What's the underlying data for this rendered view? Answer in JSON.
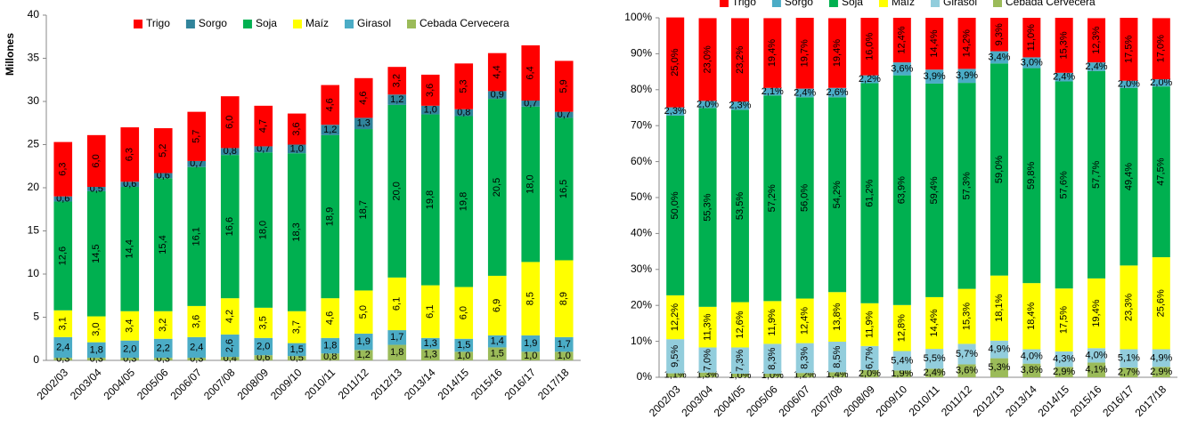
{
  "chart_data": [
    {
      "type": "stacked_bar",
      "ylabel": "Millones",
      "categories": [
        "2002/03",
        "2003/04",
        "2004/05",
        "2005/06",
        "2006/07",
        "2007/08",
        "2008/09",
        "2009/10",
        "2010/11",
        "2011/12",
        "2012/13",
        "2013/14",
        "2014/15",
        "2015/16",
        "2016/17",
        "2017/18"
      ],
      "ylim": [
        0,
        40
      ],
      "yticks": [
        0,
        5,
        10,
        15,
        20,
        25,
        30,
        35,
        40
      ],
      "legend": "top",
      "series": [
        {
          "name": "Trigo",
          "color": "#ff0000",
          "values": [
            6.3,
            6.0,
            6.3,
            5.2,
            5.7,
            6.0,
            4.7,
            3.6,
            4.6,
            4.6,
            3.2,
            3.6,
            5.3,
            4.4,
            6.4,
            5.9
          ],
          "value_labels": [
            "6,3",
            "6,0",
            "6,3",
            "5,2",
            "5,7",
            "6,0",
            "4,7",
            "3,6",
            "4,6",
            "4,6",
            "3,2",
            "3,6",
            "5,3",
            "4,4",
            "6,4",
            "5,9"
          ]
        },
        {
          "name": "Sorgo",
          "color": "#31849b",
          "values": [
            0.6,
            0.5,
            0.6,
            0.6,
            0.7,
            0.8,
            0.7,
            1.0,
            1.2,
            1.3,
            1.2,
            1.0,
            0.8,
            0.9,
            0.7,
            0.7
          ],
          "value_labels": [
            "0,6",
            "0,5",
            "0,6",
            "0,6",
            "0,7",
            "0,8",
            "0,7",
            "1,0",
            "1,2",
            "1,3",
            "1,2",
            "1,0",
            "0,8",
            "0,9",
            "0,7",
            "0,7"
          ]
        },
        {
          "name": "Soja",
          "color": "#00b050",
          "values": [
            12.6,
            14.5,
            14.4,
            15.4,
            16.1,
            16.6,
            18.0,
            18.3,
            18.9,
            18.7,
            20.0,
            19.8,
            19.8,
            20.5,
            18.0,
            16.5
          ],
          "value_labels": [
            "12,6",
            "14,5",
            "14,4",
            "15,4",
            "16,1",
            "16,6",
            "18,0",
            "18,3",
            "18,9",
            "18,7",
            "20,0",
            "19,8",
            "19,8",
            "20,5",
            "18,0",
            "16,5"
          ]
        },
        {
          "name": "Maíz",
          "color": "#ffff00",
          "values": [
            3.1,
            3.0,
            3.4,
            3.2,
            3.6,
            4.2,
            3.5,
            3.7,
            4.6,
            5.0,
            6.1,
            6.1,
            6.0,
            6.9,
            8.5,
            8.9
          ],
          "value_labels": [
            "3,1",
            "3,0",
            "3,4",
            "3,2",
            "3,6",
            "4,2",
            "3,5",
            "3,7",
            "4,6",
            "5,0",
            "6,1",
            "6,1",
            "6,0",
            "6,9",
            "8,5",
            "8,9"
          ]
        },
        {
          "name": "Girasol",
          "color": "#4bacc6",
          "values": [
            2.4,
            1.8,
            2.0,
            2.2,
            2.4,
            2.6,
            2.0,
            1.5,
            1.8,
            1.9,
            1.7,
            1.3,
            1.5,
            1.4,
            1.9,
            1.7
          ],
          "value_labels": [
            "2,4",
            "1,8",
            "2,0",
            "2,2",
            "2,4",
            "2,6",
            "2,0",
            "1,5",
            "1,8",
            "1,9",
            "1,7",
            "1,3",
            "1,5",
            "1,4",
            "1,9",
            "1,7"
          ]
        },
        {
          "name": "Cebada Cervecera",
          "color": "#9bbb59",
          "values": [
            0.3,
            0.3,
            0.3,
            0.3,
            0.3,
            0.4,
            0.6,
            0.5,
            0.8,
            1.2,
            1.8,
            1.3,
            1.0,
            1.5,
            1.0,
            1.0
          ],
          "value_labels": [
            "0,3",
            "0,3",
            "0,3",
            "0,3",
            "0,3",
            "0,4",
            "0,6",
            "0,5",
            "0,8",
            "1,2",
            "1,8",
            "1,3",
            "1,0",
            "1,5",
            "1,0",
            "1,0"
          ]
        }
      ]
    },
    {
      "type": "stacked_bar",
      "categories": [
        "2002/03",
        "2003/04",
        "2004/05",
        "2005/06",
        "2006/07",
        "2007/08",
        "2008/09",
        "2009/10",
        "2010/11",
        "2011/12",
        "2012/13",
        "2013/14",
        "2014/15",
        "2015/16",
        "2016/17",
        "2017/18"
      ],
      "ylim": [
        0,
        100
      ],
      "yticks": [
        {
          "value": 0,
          "label": "0%"
        },
        {
          "value": 10,
          "label": "10%"
        },
        {
          "value": 20,
          "label": "20%"
        },
        {
          "value": 30,
          "label": "30%"
        },
        {
          "value": 40,
          "label": "40%"
        },
        {
          "value": 50,
          "label": "50%"
        },
        {
          "value": 60,
          "label": "60%"
        },
        {
          "value": 70,
          "label": "70%"
        },
        {
          "value": 80,
          "label": "80%"
        },
        {
          "value": 90,
          "label": "90%"
        },
        {
          "value": 100,
          "label": "100%"
        }
      ],
      "legend": "top",
      "series": [
        {
          "name": "Trigo",
          "color": "#ff0000",
          "values": [
            25.0,
            23.0,
            23.2,
            19.4,
            19.7,
            19.4,
            16.0,
            12.4,
            14.4,
            14.2,
            9.3,
            11.0,
            15.3,
            12.3,
            17.5,
            17.0
          ],
          "value_labels": [
            "25,0%",
            "23,0%",
            "23,2%",
            "19,4%",
            "19,7%",
            "19,4%",
            "16,0%",
            "12,4%",
            "14,4%",
            "14,2%",
            "9,3%",
            "11,0%",
            "15,3%",
            "12,3%",
            "17,5%",
            "17,0%"
          ]
        },
        {
          "name": "Sorgo",
          "color": "#4bacc6",
          "values": [
            2.3,
            2.0,
            2.3,
            2.1,
            2.4,
            2.6,
            2.2,
            3.6,
            3.9,
            3.9,
            3.4,
            3.0,
            2.4,
            2.4,
            2.0,
            2.0
          ],
          "value_labels": [
            "2,3%",
            "2,0%",
            "2,3%",
            "2,1%",
            "2,4%",
            "2,6%",
            "2,2%",
            "3,6%",
            "3,9%",
            "3,9%",
            "3,4%",
            "3,0%",
            "2,4%",
            "2,4%",
            "2,0%",
            "2,0%"
          ]
        },
        {
          "name": "Soja",
          "color": "#00b050",
          "values": [
            50.0,
            55.3,
            53.5,
            57.2,
            56.0,
            54.2,
            61.2,
            63.9,
            59.4,
            57.3,
            59.0,
            59.8,
            57.6,
            57.7,
            49.4,
            47.5
          ],
          "value_labels": [
            "50,0%",
            "55,3%",
            "53,5%",
            "57,2%",
            "56,0%",
            "54,2%",
            "61,2%",
            "63,9%",
            "59,4%",
            "57,3%",
            "59,0%",
            "59,8%",
            "57,6%",
            "57,7%",
            "49,4%",
            "47,5%"
          ]
        },
        {
          "name": "Maíz",
          "color": "#ffff00",
          "values": [
            12.2,
            11.3,
            12.6,
            11.9,
            12.4,
            13.8,
            11.9,
            12.8,
            14.4,
            15.3,
            18.1,
            18.4,
            17.5,
            19.4,
            23.3,
            25.6
          ],
          "value_labels": [
            "12,2%",
            "11,3%",
            "12,6%",
            "11,9%",
            "12,4%",
            "13,8%",
            "11,9%",
            "12,8%",
            "14,4%",
            "15,3%",
            "18,1%",
            "18,4%",
            "17,5%",
            "19,4%",
            "23,3%",
            "25,6%"
          ]
        },
        {
          "name": "Girasol",
          "color": "#92cddc",
          "values": [
            9.5,
            7.0,
            7.3,
            8.3,
            8.3,
            8.5,
            6.7,
            5.4,
            5.5,
            5.7,
            4.9,
            4.0,
            4.3,
            4.0,
            5.1,
            4.9
          ],
          "value_labels": [
            "9,5%",
            "7,0%",
            "7,3%",
            "8,3%",
            "8,3%",
            "8,5%",
            "6,7%",
            "5,4%",
            "5,5%",
            "5,7%",
            "4,9%",
            "4,0%",
            "4,3%",
            "4,0%",
            "5,1%",
            "4,9%"
          ]
        },
        {
          "name": "Cebada Cervecera",
          "color": "#9bbb59",
          "values": [
            1.1,
            1.3,
            1.0,
            1.0,
            1.2,
            1.4,
            2.0,
            1.9,
            2.4,
            3.6,
            5.3,
            3.8,
            2.9,
            4.1,
            2.7,
            2.9
          ],
          "value_labels": [
            "1,1%",
            "1,3%",
            "1,0%",
            "1,0%",
            "1,2%",
            "1,4%",
            "2,0%",
            "1,9%",
            "2,4%",
            "3,6%",
            "5,3%",
            "3,8%",
            "2,9%",
            "4,1%",
            "2,7%",
            "2,9%"
          ]
        }
      ]
    }
  ]
}
